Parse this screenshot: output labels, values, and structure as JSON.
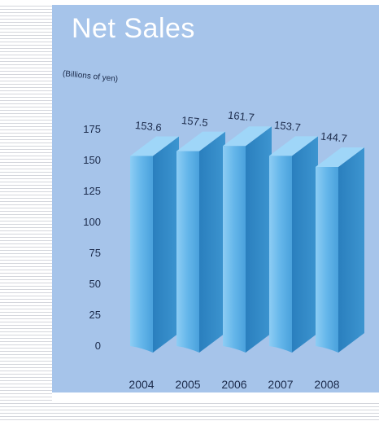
{
  "colors": {
    "panel_bg": "#a6c4ea",
    "title_color": "#ffffff",
    "bar_front": "#5fb0e6",
    "bar_side": "#2f86c4",
    "bar_top": "#9fd6f8",
    "text": "#1b2a4a"
  },
  "chart_data": {
    "type": "bar",
    "title": "Net Sales",
    "ylabel": "(Billions of yen)",
    "xlabel": "",
    "categories": [
      "2004",
      "2005",
      "2006",
      "2007",
      "2008"
    ],
    "values": [
      153.6,
      157.5,
      161.7,
      153.7,
      144.7
    ],
    "value_labels": [
      "153.6",
      "157.5",
      "161.7",
      "153.7",
      "144.7"
    ],
    "yticks": [
      "0",
      "25",
      "50",
      "75",
      "100",
      "125",
      "150",
      "175"
    ],
    "ylim": [
      0,
      175
    ],
    "grid": false,
    "legend": "none"
  }
}
